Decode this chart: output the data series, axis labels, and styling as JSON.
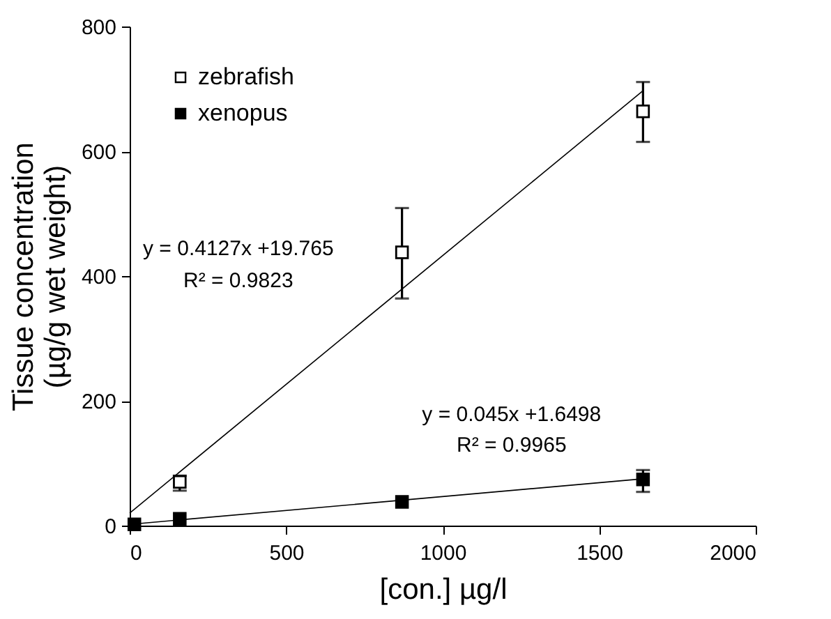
{
  "chart_data": {
    "type": "scatter",
    "xlabel": "[con.]  µg/l",
    "ylabel": "Tissue concentration\n(µg/g  wet weight)",
    "series": [
      {
        "name": "zebrafish",
        "color": "#ffffff",
        "x": [
          160,
          870,
          1640
        ],
        "values": [
          70,
          438,
          664
        ],
        "errors": [
          [
            56,
            80
          ],
          [
            364,
            509
          ],
          [
            615,
            711
          ]
        ]
      },
      {
        "name": "xenopus",
        "color": "#000000",
        "x": [
          15,
          160,
          870,
          1640
        ],
        "values": [
          2,
          11,
          38,
          74
        ],
        "errors": [
          null,
          null,
          null,
          [
            54,
            89
          ]
        ]
      },
      {
        "type": "line",
        "color": "#000000",
        "x": [
          0,
          1640
        ],
        "values": [
          20,
          697
        ],
        "marker": "none"
      },
      {
        "type": "line",
        "color": "#000000",
        "x": [
          0,
          1640
        ],
        "values": [
          2,
          75
        ],
        "marker": "none"
      }
    ],
    "annotations": [
      "y = 0.4127x +19.765",
      "R² = 0.9823",
      "y = 0.045x +1.6498",
      "R² = 0.9965"
    ],
    "xlim": [
      0,
      2000
    ],
    "xticks": [
      0,
      500,
      1000,
      1500,
      2000
    ],
    "ylim": [
      0,
      800
    ],
    "yticks": [
      0,
      200,
      400,
      600,
      800
    ],
    "marker": "square",
    "legend": "top left",
    "grid": false
  }
}
